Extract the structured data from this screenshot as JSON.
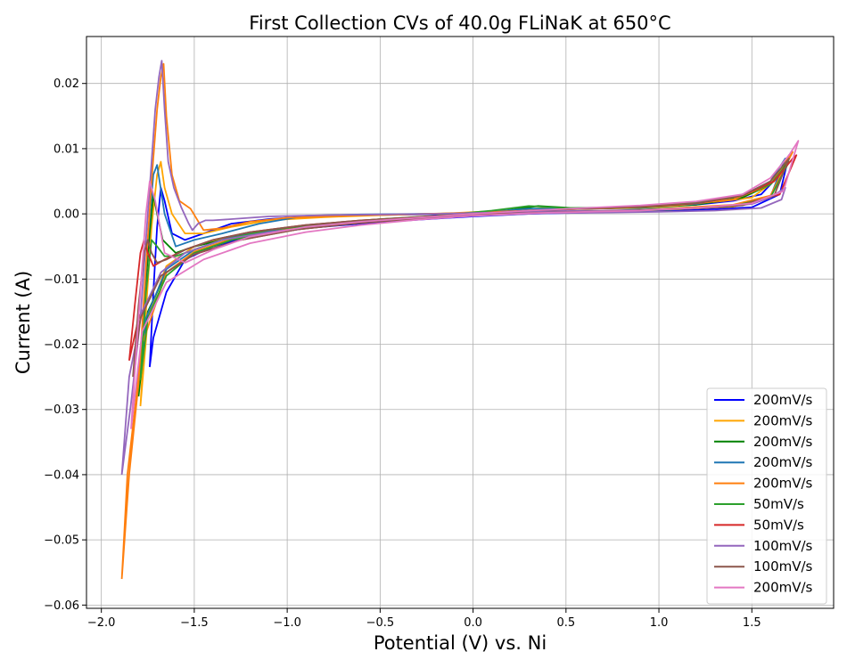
{
  "chart_data": {
    "type": "line",
    "title": "First Collection CVs of 40.0g FLiNaK at 650°C",
    "xlabel": "Potential (V) vs. Ni",
    "ylabel": "Current (A)",
    "xlim": [
      -2.08,
      1.94
    ],
    "ylim": [
      -0.0605,
      0.0272
    ],
    "xticks": [
      -2.0,
      -1.5,
      -1.0,
      -0.5,
      0.0,
      0.5,
      1.0,
      1.5
    ],
    "xtick_labels": [
      "−2.0",
      "−1.5",
      "−1.0",
      "−0.5",
      "0.0",
      "0.5",
      "1.0",
      "1.5"
    ],
    "yticks": [
      -0.06,
      -0.05,
      -0.04,
      -0.03,
      -0.02,
      -0.01,
      0.0,
      0.01,
      0.02
    ],
    "ytick_labels": [
      "−0.06",
      "−0.05",
      "−0.04",
      "−0.03",
      "−0.02",
      "−0.01",
      "0.00",
      "0.01",
      "0.02"
    ],
    "grid": true,
    "legend_position": "bottom-right",
    "series": [
      {
        "name": "200mV/s",
        "color": "#0000ff",
        "x": [
          -1.74,
          -1.72,
          -1.7,
          -1.68,
          -1.66,
          -1.62,
          -1.55,
          -1.45,
          -1.3,
          -1.1,
          -0.9,
          -0.6,
          -0.3,
          0.0,
          0.3,
          0.6,
          0.9,
          1.2,
          1.4,
          1.55,
          1.65,
          1.7,
          1.65,
          1.5,
          1.2,
          0.9,
          0.6,
          0.3,
          0.0,
          -0.3,
          -0.6,
          -0.9,
          -1.2,
          -1.4,
          -1.55,
          -1.65,
          -1.72,
          -1.74
        ],
        "y": [
          -0.0235,
          -0.012,
          -0.002,
          0.004,
          0.002,
          -0.003,
          -0.004,
          -0.003,
          -0.0015,
          -0.0008,
          -0.0004,
          -0.0002,
          -0.0001,
          0.0,
          0.0006,
          0.0008,
          0.001,
          0.0014,
          0.002,
          0.003,
          0.006,
          0.009,
          0.003,
          0.001,
          0.0006,
          0.0004,
          0.0002,
          0.0,
          -0.0004,
          -0.0009,
          -0.0015,
          -0.0022,
          -0.0035,
          -0.005,
          -0.007,
          -0.012,
          -0.019,
          -0.0235
        ]
      },
      {
        "name": "200mV/s",
        "color": "#ffa500",
        "x": [
          -1.79,
          -1.76,
          -1.73,
          -1.7,
          -1.68,
          -1.66,
          -1.62,
          -1.55,
          -1.45,
          -1.3,
          -1.1,
          -0.8,
          -0.5,
          -0.2,
          0.1,
          0.4,
          0.7,
          1.0,
          1.3,
          1.5,
          1.62,
          1.7,
          1.6,
          1.4,
          1.1,
          0.8,
          0.5,
          0.2,
          -0.1,
          -0.4,
          -0.7,
          -1.0,
          -1.3,
          -1.5,
          -1.65,
          -1.75,
          -1.79
        ],
        "y": [
          -0.0295,
          -0.015,
          -0.002,
          0.006,
          0.008,
          0.004,
          0.0,
          -0.003,
          -0.003,
          -0.002,
          -0.001,
          -0.0005,
          -0.0002,
          0.0,
          0.0004,
          0.0009,
          0.0009,
          0.0012,
          0.0018,
          0.0025,
          0.005,
          0.009,
          0.0025,
          0.0011,
          0.0007,
          0.0005,
          0.0003,
          0.0001,
          -0.0003,
          -0.0008,
          -0.0014,
          -0.0022,
          -0.0035,
          -0.005,
          -0.008,
          -0.016,
          -0.0295
        ]
      },
      {
        "name": "200mV/s",
        "color": "#008000",
        "x": [
          -1.8,
          -1.77,
          -1.74,
          -1.72,
          -1.7,
          -1.67,
          -1.6,
          -1.5,
          -1.35,
          -1.1,
          -0.8,
          -0.5,
          -0.2,
          0.1,
          0.35,
          0.6,
          0.9,
          1.2,
          1.45,
          1.6,
          1.7,
          1.6,
          1.4,
          1.1,
          0.8,
          0.5,
          0.2,
          -0.1,
          -0.4,
          -0.7,
          -1.0,
          -1.3,
          -1.5,
          -1.65,
          -1.75,
          -1.8
        ],
        "y": [
          -0.028,
          -0.014,
          -0.003,
          0.003,
          0.0,
          -0.004,
          -0.006,
          -0.005,
          -0.004,
          -0.0025,
          -0.0015,
          -0.0009,
          -0.0004,
          0.0002,
          0.0012,
          0.0008,
          0.0009,
          0.0014,
          0.0025,
          0.0045,
          0.0085,
          0.0025,
          0.0012,
          0.0007,
          0.0004,
          0.0002,
          0.0,
          -0.0004,
          -0.0009,
          -0.0016,
          -0.0025,
          -0.004,
          -0.006,
          -0.009,
          -0.015,
          -0.028
        ]
      },
      {
        "name": "200mV/s",
        "color": "#1f77b4",
        "x": [
          -1.82,
          -1.78,
          -1.75,
          -1.72,
          -1.7,
          -1.66,
          -1.6,
          -1.5,
          -1.35,
          -1.15,
          -0.9,
          -0.6,
          -0.3,
          0.0,
          0.3,
          0.6,
          0.9,
          1.2,
          1.45,
          1.6,
          1.68,
          1.6,
          1.4,
          1.1,
          0.8,
          0.5,
          0.2,
          -0.1,
          -0.4,
          -0.7,
          -1.0,
          -1.3,
          -1.5,
          -1.65,
          -1.76,
          -1.82
        ],
        "y": [
          -0.031,
          -0.018,
          -0.004,
          0.006,
          0.0075,
          0.0,
          -0.005,
          -0.004,
          -0.003,
          -0.0015,
          -0.0003,
          -0.0001,
          0.0,
          0.0001,
          0.0008,
          0.0008,
          0.001,
          0.0015,
          0.0028,
          0.005,
          0.0085,
          0.0026,
          0.0013,
          0.0008,
          0.0005,
          0.0003,
          0.0001,
          -0.0003,
          -0.0008,
          -0.0014,
          -0.0022,
          -0.0035,
          -0.0055,
          -0.0085,
          -0.016,
          -0.031
        ]
      },
      {
        "name": "200mV/s",
        "color": "#ff7f0e",
        "x": [
          -1.89,
          -1.85,
          -1.8,
          -1.76,
          -1.73,
          -1.7,
          -1.68,
          -1.665,
          -1.65,
          -1.62,
          -1.58,
          -1.52,
          -1.45,
          -1.35,
          -1.2,
          -1.0,
          -0.7,
          -0.4,
          -0.1,
          0.2,
          0.5,
          0.8,
          1.1,
          1.4,
          1.6,
          1.72,
          1.6,
          1.4,
          1.1,
          0.8,
          0.5,
          0.2,
          -0.1,
          -0.4,
          -0.7,
          -1.0,
          -1.3,
          -1.5,
          -1.65,
          -1.78,
          -1.86,
          -1.89
        ],
        "y": [
          -0.056,
          -0.04,
          -0.026,
          -0.008,
          0.005,
          0.016,
          0.021,
          0.023,
          0.015,
          0.006,
          0.002,
          0.0008,
          -0.0025,
          -0.0022,
          -0.0012,
          -0.0006,
          -0.0003,
          -0.0001,
          0.0001,
          0.0004,
          0.0007,
          0.0009,
          0.0013,
          0.0022,
          0.0045,
          0.0095,
          0.0028,
          0.0014,
          0.0009,
          0.0005,
          0.0003,
          0.0001,
          -0.0003,
          -0.0008,
          -0.0015,
          -0.0024,
          -0.0038,
          -0.0058,
          -0.009,
          -0.02,
          -0.04,
          -0.056
        ]
      },
      {
        "name": "50mV/s",
        "color": "#2ca02c",
        "x": [
          -1.79,
          -1.76,
          -1.73,
          -1.7,
          -1.66,
          -1.6,
          -1.5,
          -1.35,
          -1.1,
          -0.8,
          -0.5,
          -0.2,
          0.1,
          0.3,
          0.5,
          0.8,
          1.1,
          1.4,
          1.6,
          1.7,
          1.6,
          1.4,
          1.1,
          0.8,
          0.5,
          0.2,
          -0.1,
          -0.4,
          -0.7,
          -1.0,
          -1.3,
          -1.5,
          -1.65,
          -1.75,
          -1.79
        ],
        "y": [
          -0.0255,
          -0.012,
          -0.004,
          -0.005,
          -0.0065,
          -0.0065,
          -0.0055,
          -0.004,
          -0.0025,
          -0.0015,
          -0.0008,
          -0.0003,
          0.0005,
          0.0012,
          0.0009,
          0.001,
          0.0015,
          0.0025,
          0.0045,
          0.008,
          0.0025,
          0.0012,
          0.0007,
          0.0004,
          0.0002,
          0.0,
          -0.0004,
          -0.0009,
          -0.0016,
          -0.0025,
          -0.004,
          -0.006,
          -0.0095,
          -0.016,
          -0.0255
        ]
      },
      {
        "name": "50mV/s",
        "color": "#d62728",
        "x": [
          -1.85,
          -1.82,
          -1.79,
          -1.77,
          -1.75,
          -1.72,
          -1.66,
          -1.55,
          -1.4,
          -1.2,
          -0.9,
          -0.6,
          -0.3,
          0.0,
          0.3,
          0.6,
          0.9,
          1.2,
          1.45,
          1.62,
          1.72,
          1.74,
          1.65,
          1.45,
          1.15,
          0.85,
          0.55,
          0.25,
          -0.05,
          -0.35,
          -0.65,
          -0.95,
          -1.25,
          -1.5,
          -1.68,
          -1.8,
          -1.85
        ],
        "y": [
          -0.0225,
          -0.014,
          -0.006,
          -0.004,
          -0.006,
          -0.008,
          -0.007,
          -0.0055,
          -0.004,
          -0.0028,
          -0.0017,
          -0.001,
          -0.0005,
          0.0,
          0.0005,
          0.0008,
          0.0011,
          0.0016,
          0.0028,
          0.005,
          0.0085,
          0.009,
          0.003,
          0.0014,
          0.0008,
          0.0005,
          0.0003,
          0.0001,
          -0.0003,
          -0.0008,
          -0.0015,
          -0.0024,
          -0.004,
          -0.0062,
          -0.0095,
          -0.016,
          -0.0225
        ]
      },
      {
        "name": "100mV/s",
        "color": "#9467bd",
        "x": [
          -1.89,
          -1.84,
          -1.79,
          -1.76,
          -1.73,
          -1.71,
          -1.69,
          -1.675,
          -1.66,
          -1.64,
          -1.61,
          -1.57,
          -1.53,
          -1.51,
          -1.48,
          -1.44,
          -1.4,
          -1.3,
          -1.1,
          -0.8,
          -0.5,
          -0.2,
          0.1,
          0.4,
          0.7,
          1.0,
          1.3,
          1.5,
          1.6,
          1.68,
          1.66,
          1.55,
          1.3,
          1.0,
          0.7,
          0.4,
          0.1,
          -0.2,
          -0.5,
          -0.8,
          -1.1,
          -1.35,
          -1.55,
          -1.68,
          -1.78,
          -1.85,
          -1.89
        ],
        "y": [
          -0.04,
          -0.029,
          -0.016,
          -0.004,
          0.008,
          0.016,
          0.021,
          0.0235,
          0.016,
          0.008,
          0.004,
          0.001,
          -0.0015,
          -0.0025,
          -0.0015,
          -0.001,
          -0.001,
          -0.0008,
          -0.0004,
          -0.0002,
          -0.0001,
          0.0,
          0.0002,
          0.0004,
          0.0005,
          0.0007,
          0.001,
          0.0015,
          0.0025,
          0.004,
          0.0022,
          0.0009,
          0.0005,
          0.0003,
          0.0002,
          0.0001,
          -0.0002,
          -0.0005,
          -0.001,
          -0.0018,
          -0.0028,
          -0.004,
          -0.006,
          -0.009,
          -0.015,
          -0.025,
          -0.04
        ]
      },
      {
        "name": "100mV/s",
        "color": "#8c564b",
        "x": [
          -1.83,
          -1.8,
          -1.77,
          -1.75,
          -1.73,
          -1.7,
          -1.65,
          -1.55,
          -1.4,
          -1.2,
          -0.9,
          -0.6,
          -0.3,
          0.0,
          0.3,
          0.6,
          0.9,
          1.2,
          1.45,
          1.6,
          1.7,
          1.62,
          1.45,
          1.15,
          0.85,
          0.55,
          0.25,
          -0.05,
          -0.35,
          -0.65,
          -0.95,
          -1.25,
          -1.5,
          -1.68,
          -1.79,
          -1.83
        ],
        "y": [
          -0.025,
          -0.014,
          -0.006,
          -0.004,
          -0.006,
          -0.0075,
          -0.007,
          -0.0055,
          -0.004,
          -0.0028,
          -0.0017,
          -0.001,
          -0.0005,
          0.0,
          0.0005,
          0.0008,
          0.0011,
          0.0016,
          0.0028,
          0.005,
          0.0085,
          0.0028,
          0.0013,
          0.0008,
          0.0005,
          0.0003,
          0.0001,
          -0.0003,
          -0.0008,
          -0.0015,
          -0.0024,
          -0.004,
          -0.0062,
          -0.0095,
          -0.016,
          -0.025
        ]
      },
      {
        "name": "200mV/s",
        "color": "#e377c2",
        "x": [
          -1.84,
          -1.81,
          -1.78,
          -1.76,
          -1.74,
          -1.71,
          -1.66,
          -1.55,
          -1.4,
          -1.2,
          -0.9,
          -0.6,
          -0.3,
          0.0,
          0.3,
          0.6,
          0.9,
          1.2,
          1.45,
          1.6,
          1.7,
          1.75,
          1.67,
          1.5,
          1.2,
          0.9,
          0.6,
          0.3,
          0.0,
          -0.3,
          -0.6,
          -0.9,
          -1.2,
          -1.45,
          -1.65,
          -1.78,
          -1.84
        ],
        "y": [
          -0.033,
          -0.02,
          -0.008,
          0.0,
          0.005,
          0.002,
          -0.006,
          -0.0075,
          -0.0055,
          -0.0035,
          -0.002,
          -0.0012,
          -0.0006,
          0.0,
          0.0005,
          0.0009,
          0.0013,
          0.0019,
          0.003,
          0.0055,
          0.009,
          0.0112,
          0.0035,
          0.0016,
          0.0009,
          0.0005,
          0.0003,
          0.0001,
          -0.0003,
          -0.0009,
          -0.0017,
          -0.0028,
          -0.0045,
          -0.007,
          -0.0105,
          -0.018,
          -0.033
        ]
      }
    ]
  }
}
